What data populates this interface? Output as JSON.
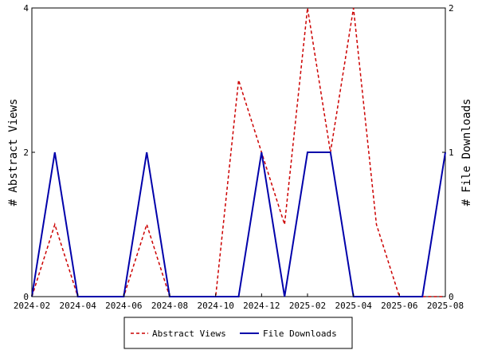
{
  "chart_data": {
    "type": "line",
    "title": "",
    "x": [
      "2024-02",
      "2024-03",
      "2024-04",
      "2024-05",
      "2024-06",
      "2024-07",
      "2024-08",
      "2024-09",
      "2024-10",
      "2024-11",
      "2024-12",
      "2025-01",
      "2025-02",
      "2025-03",
      "2025-04",
      "2025-05",
      "2025-06",
      "2025-07",
      "2025-08"
    ],
    "xlabel": "",
    "x_ticks": [
      "2024-02",
      "2024-04",
      "2024-06",
      "2024-08",
      "2024-10",
      "2024-12",
      "2025-02",
      "2025-04",
      "2025-06",
      "2025-08"
    ],
    "ylabel_left": "# Abstract Views",
    "ylabel_right": "# File Downloads",
    "ylim_left": [
      0,
      4
    ],
    "ylim_right": [
      0,
      2
    ],
    "yticks_left": [
      "0",
      "2",
      "4"
    ],
    "yticks_right": [
      "0",
      "1",
      "2"
    ],
    "grid": false,
    "legend_position": "bottom",
    "series": [
      {
        "name": "Abstract Views",
        "axis": "left",
        "style": "dashed",
        "color": "#cc0000",
        "values": [
          0,
          1,
          0,
          0,
          0,
          1,
          0,
          0,
          0,
          3,
          2,
          1,
          4,
          2,
          4,
          1,
          0,
          0,
          0
        ]
      },
      {
        "name": "File Downloads",
        "axis": "right",
        "style": "solid",
        "color": "#0000aa",
        "values": [
          0,
          1,
          0,
          0,
          0,
          1,
          0,
          0,
          0,
          0,
          1,
          0,
          1,
          1,
          0,
          0,
          0,
          0,
          1
        ]
      }
    ]
  }
}
